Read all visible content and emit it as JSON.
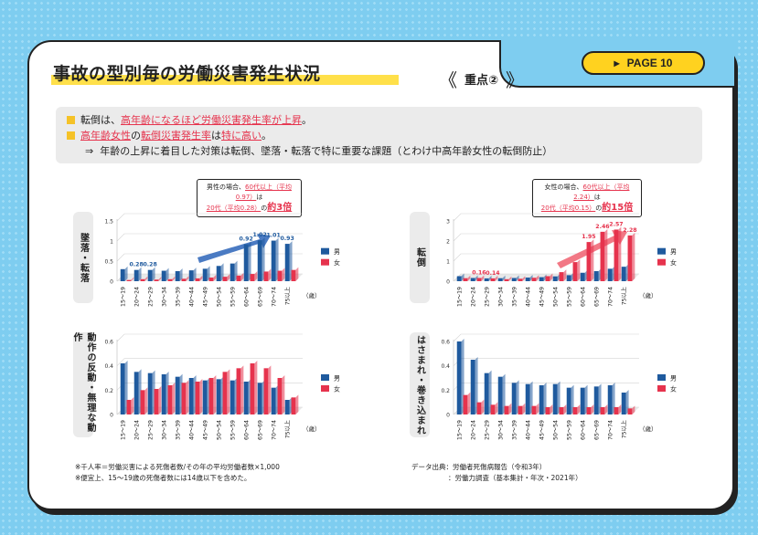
{
  "header": {
    "title": "事故の型別毎の労働災害発生状況",
    "point_label": "重点②",
    "page_label": "PAGE 10",
    "bracket_left": "《",
    "bracket_right": "》",
    "page_marker": "▶"
  },
  "summary": {
    "line1_a": "転倒は、",
    "line1_b": "高年齢になるほど労働災害発生率が上昇",
    "line1_c": "。",
    "line2_a": "高年齢女性",
    "line2_b": "の",
    "line2_c": "転倒災害発生率",
    "line2_d": "は",
    "line2_e": "特に高い",
    "line2_f": "。",
    "line3_arrow": "⇒",
    "line3": "年齢の上昇に着目した対策は転倒、墜落・転落で特に重要な課題（とわけ中高年齢女性の転倒防止）"
  },
  "callouts": {
    "left": {
      "l1_a": "男性の場合、",
      "l1_b": "60代以上（平均0.97）",
      "l1_c": "は",
      "l2_a": "20代（平均0.28）",
      "l2_b": "の",
      "l2_c": "約3倍"
    },
    "right": {
      "l1_a": "女性の場合、",
      "l1_b": "60代以上（平均2.24）",
      "l1_c": "は",
      "l2_a": "20代（平均0.15）",
      "l2_b": "の",
      "l2_c": "約15倍"
    }
  },
  "notes": {
    "left1": "※千人率＝労働災害による死傷者数/その年の平均労働者数×1,000",
    "left2": "※便宜上、15〜19歳の死傷者数には14歳以下を含めた。",
    "right1": "データ出典：労働者死傷病報告（令和3年）",
    "right2": "：労働力調査（基本集計・年次・2021年）"
  },
  "colors": {
    "male": "#1f5a9e",
    "female": "#e6334d",
    "accent_yellow": "#ffd21f",
    "background": "#7ecdf0"
  },
  "chart_data": [
    {
      "type": "bar",
      "title": "墜落・転落",
      "categories": [
        "15〜19",
        "20〜24",
        "25〜29",
        "30〜34",
        "35〜39",
        "40〜44",
        "45〜49",
        "50〜54",
        "55〜59",
        "60〜64",
        "65〜69",
        "70〜74",
        "75以上"
      ],
      "unit_label": "（歳）",
      "ylim": [
        0,
        1.5
      ],
      "yticks": [
        "0",
        "0.5",
        "1",
        "1.5"
      ],
      "series": [
        {
          "name": "男",
          "values": [
            0.3,
            0.28,
            0.28,
            0.26,
            0.25,
            0.27,
            0.31,
            0.38,
            0.44,
            0.92,
            1.02,
            1.01,
            0.93
          ]
        },
        {
          "name": "女",
          "values": [
            0.03,
            0.05,
            0.04,
            0.05,
            0.06,
            0.07,
            0.09,
            0.11,
            0.14,
            0.18,
            0.24,
            0.26,
            0.28
          ]
        }
      ],
      "data_labels": {
        "1": "0.28",
        "2": "0.28",
        "9": "0.92",
        "10": "1.02",
        "11": "1.01",
        "12": "0.93"
      },
      "label_series": 0
    },
    {
      "type": "bar",
      "title": "転倒",
      "categories": [
        "15〜19",
        "20〜24",
        "25〜29",
        "30〜34",
        "35〜39",
        "40〜44",
        "45〜49",
        "50〜54",
        "55〜59",
        "60〜64",
        "65〜69",
        "70〜74",
        "75以上"
      ],
      "unit_label": "（歳）",
      "ylim": [
        0,
        3
      ],
      "yticks": [
        "0",
        "1",
        "2",
        "3"
      ],
      "series": [
        {
          "name": "男",
          "values": [
            0.25,
            0.16,
            0.14,
            0.15,
            0.16,
            0.18,
            0.2,
            0.24,
            0.3,
            0.42,
            0.5,
            0.62,
            0.72
          ]
        },
        {
          "name": "女",
          "values": [
            0.15,
            0.16,
            0.14,
            0.1,
            0.12,
            0.17,
            0.25,
            0.45,
            0.95,
            1.95,
            2.46,
            2.57,
            2.28
          ]
        }
      ],
      "data_labels": {
        "1": "0.16",
        "2": "0.14",
        "9": "1.95",
        "10": "2.46",
        "11": "2.57",
        "12": "2.28"
      },
      "label_series": 1
    },
    {
      "type": "bar",
      "title": "動作の反動・無理な動作",
      "categories": [
        "15〜19",
        "20〜24",
        "25〜29",
        "30〜34",
        "35〜39",
        "40〜44",
        "45〜49",
        "50〜54",
        "55〜59",
        "60〜64",
        "65〜69",
        "70〜74",
        "75以上"
      ],
      "unit_label": "（歳）",
      "ylim": [
        0,
        0.6
      ],
      "yticks": [
        "0",
        "0.2",
        "0.4",
        "0.6"
      ],
      "series": [
        {
          "name": "男",
          "values": [
            0.42,
            0.35,
            0.34,
            0.33,
            0.31,
            0.3,
            0.28,
            0.29,
            0.28,
            0.27,
            0.26,
            0.22,
            0.12
          ]
        },
        {
          "name": "女",
          "values": [
            0.12,
            0.2,
            0.21,
            0.24,
            0.26,
            0.27,
            0.3,
            0.35,
            0.38,
            0.42,
            0.38,
            0.3,
            0.14
          ]
        }
      ]
    },
    {
      "type": "bar",
      "title": "はさまれ・巻き込まれ",
      "categories": [
        "15〜19",
        "20〜24",
        "25〜29",
        "30〜34",
        "35〜39",
        "40〜44",
        "45〜49",
        "50〜54",
        "55〜59",
        "60〜64",
        "65〜69",
        "70〜74",
        "75以上"
      ],
      "unit_label": "（歳）",
      "ylim": [
        0,
        0.6
      ],
      "yticks": [
        "0",
        "0.2",
        "0.4",
        "0.6"
      ],
      "series": [
        {
          "name": "男",
          "values": [
            0.6,
            0.45,
            0.34,
            0.31,
            0.26,
            0.25,
            0.24,
            0.25,
            0.22,
            0.22,
            0.23,
            0.24,
            0.18
          ]
        },
        {
          "name": "女",
          "values": [
            0.16,
            0.1,
            0.08,
            0.07,
            0.07,
            0.07,
            0.06,
            0.06,
            0.06,
            0.06,
            0.06,
            0.06,
            0.05
          ]
        }
      ]
    }
  ]
}
